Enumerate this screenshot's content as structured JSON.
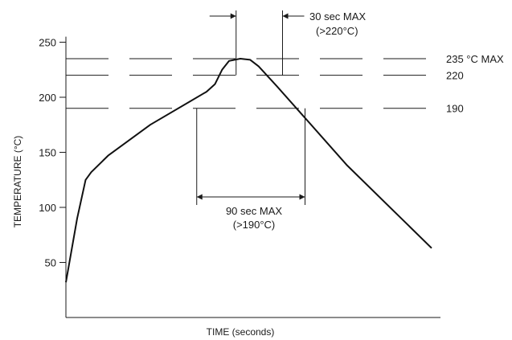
{
  "chart_data": {
    "type": "line",
    "title": "",
    "xlabel": "TIME (seconds)",
    "ylabel": "TEMPERATURE (°C)",
    "ylim": [
      0,
      260
    ],
    "yticks": [
      50,
      100,
      150,
      200,
      250
    ],
    "grid": false,
    "series": [
      {
        "points": [
          [
            0,
            32
          ],
          [
            8,
            90
          ],
          [
            14,
            125
          ],
          [
            18,
            132
          ],
          [
            30,
            147
          ],
          [
            60,
            175
          ],
          [
            100,
            205
          ],
          [
            106,
            212
          ],
          [
            111,
            225
          ],
          [
            116,
            233
          ],
          [
            124,
            235
          ],
          [
            131,
            234
          ],
          [
            137,
            228
          ],
          [
            150,
            210
          ],
          [
            200,
            138
          ],
          [
            260,
            63
          ]
        ]
      }
    ],
    "reference_lines": [
      {
        "value": 235,
        "label": "235 °C MAX"
      },
      {
        "value": 220,
        "label": "220"
      },
      {
        "value": 190,
        "label": "190"
      }
    ],
    "annotations": {
      "window_190": {
        "start": 93,
        "end": 170,
        "label_line1": "90 sec MAX",
        "label_line2": "(>190°C)"
      },
      "window_220": {
        "start": 121,
        "end": 154,
        "label_line1": "30 sec MAX",
        "label_line2": "(>220°C)"
      }
    }
  }
}
